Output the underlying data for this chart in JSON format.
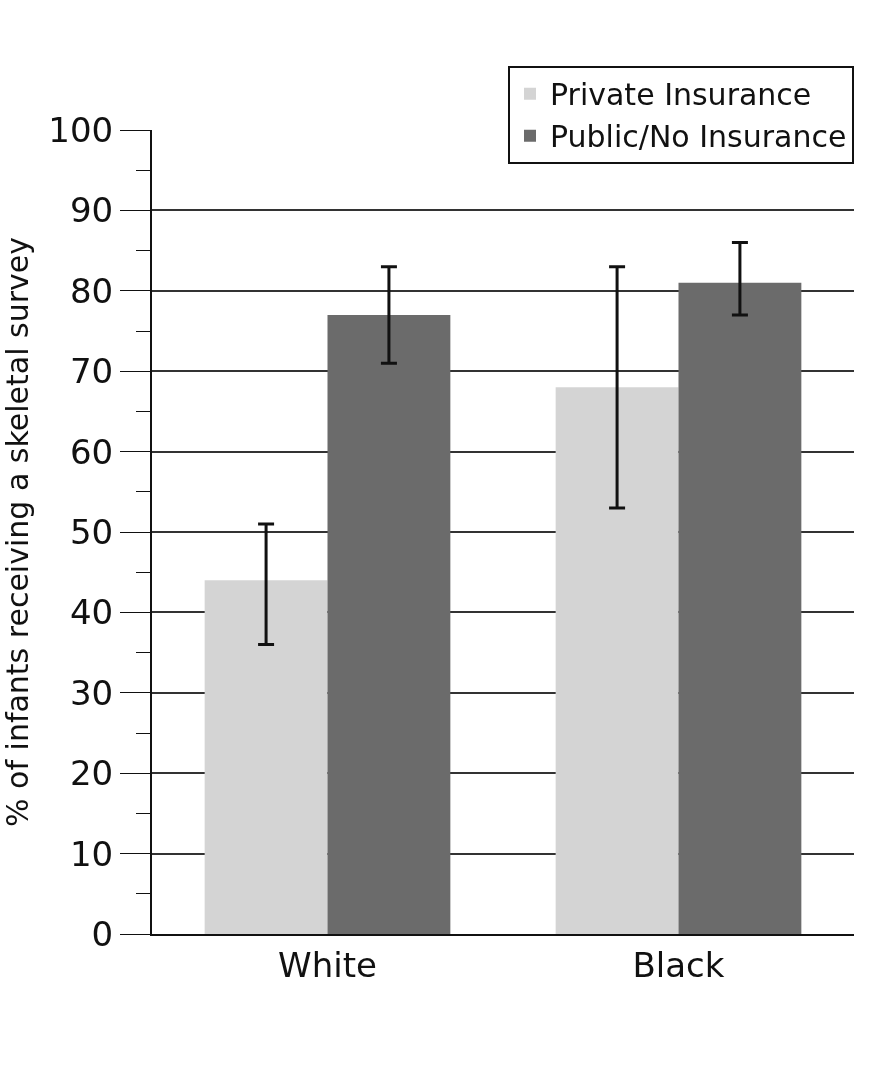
{
  "chart_data": {
    "type": "bar",
    "ylabel": "% of infants receiving a skeletal survey",
    "categories": [
      "White",
      "Black"
    ],
    "series": [
      {
        "name": "Private Insurance",
        "color": "#d4d4d4",
        "values": [
          44,
          68
        ],
        "errors": [
          [
            36,
            51
          ],
          [
            53,
            83
          ]
        ]
      },
      {
        "name": "Public/No Insurance",
        "color": "#6b6b6b",
        "values": [
          77,
          81
        ],
        "errors": [
          [
            71,
            83
          ],
          [
            77,
            86
          ]
        ]
      }
    ],
    "ylim": [
      0,
      100
    ],
    "yticks": [
      0,
      10,
      20,
      30,
      40,
      50,
      60,
      70,
      80,
      90,
      100
    ],
    "grid": "y",
    "legend": "top right"
  }
}
